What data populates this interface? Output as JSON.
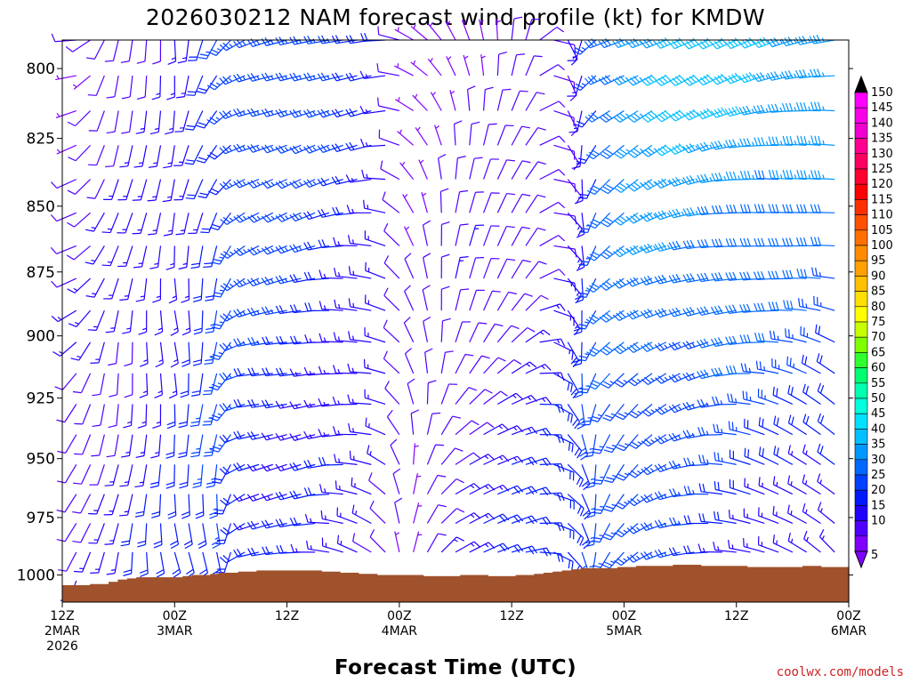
{
  "chart_data": {
    "type": "wind-barb time-height profile",
    "title": "2026030212 NAM forecast wind profile (kt) for KMDW",
    "xlabel": "Forecast Time (UTC)",
    "ylabel": "",
    "y_axis": {
      "scale": "log",
      "units": "hPa",
      "range": [
        790,
        1012
      ],
      "ticks": [
        800,
        825,
        850,
        875,
        900,
        925,
        950,
        975,
        1000
      ]
    },
    "x_axis": {
      "range_hours_from_start": [
        0,
        84
      ],
      "start": "2026-03-02 12Z",
      "ticks": [
        {
          "hour": 0,
          "lines": [
            "12Z",
            "2MAR",
            "2026"
          ]
        },
        {
          "hour": 12,
          "lines": [
            "00Z",
            "3MAR"
          ]
        },
        {
          "hour": 24,
          "lines": [
            "12Z",
            ""
          ]
        },
        {
          "hour": 36,
          "lines": [
            "00Z",
            "4MAR"
          ]
        },
        {
          "hour": 48,
          "lines": [
            "12Z",
            ""
          ]
        },
        {
          "hour": 60,
          "lines": [
            "00Z",
            "5MAR"
          ]
        },
        {
          "hour": 72,
          "lines": [
            "12Z",
            ""
          ]
        },
        {
          "hour": 84,
          "lines": [
            "00Z",
            "6MAR"
          ]
        }
      ]
    },
    "wind_keyframes": [
      {
        "hour": 0,
        "low_dir": 200,
        "low_spd": 12,
        "high_dir": 290,
        "high_spd": 8
      },
      {
        "hour": 5,
        "low_dir": 190,
        "low_spd": 15,
        "high_dir": 200,
        "high_spd": 10
      },
      {
        "hour": 12,
        "low_dir": 170,
        "low_spd": 20,
        "high_dir": 185,
        "high_spd": 12
      },
      {
        "hour": 17,
        "low_dir": 175,
        "low_spd": 25,
        "high_dir": 215,
        "high_spd": 22
      },
      {
        "hour": 20,
        "low_dir": 260,
        "low_spd": 18,
        "high_dir": 245,
        "high_spd": 28
      },
      {
        "hour": 27,
        "low_dir": 265,
        "low_spd": 15,
        "high_dir": 250,
        "high_spd": 25
      },
      {
        "hour": 34,
        "low_dir": 300,
        "low_spd": 12,
        "high_dir": 260,
        "high_spd": 18
      },
      {
        "hour": 37,
        "low_dir": 10,
        "low_spd": 8,
        "high_dir": 300,
        "high_spd": 6
      },
      {
        "hour": 42,
        "low_dir": 70,
        "low_spd": 15,
        "high_dir": 340,
        "high_spd": 8
      },
      {
        "hour": 50,
        "low_dir": 90,
        "low_spd": 20,
        "high_dir": 20,
        "high_spd": 8
      },
      {
        "hour": 55,
        "low_dir": 150,
        "low_spd": 25,
        "high_dir": 180,
        "high_spd": 12
      },
      {
        "hour": 58,
        "low_dir": 200,
        "low_spd": 25,
        "high_dir": 240,
        "high_spd": 30
      },
      {
        "hour": 64,
        "low_dir": 240,
        "low_spd": 22,
        "high_dir": 245,
        "high_spd": 38
      },
      {
        "hour": 74,
        "low_dir": 290,
        "low_spd": 15,
        "high_dir": 255,
        "high_spd": 40
      },
      {
        "hour": 84,
        "low_dir": 330,
        "low_spd": 12,
        "high_dir": 260,
        "high_spd": 35
      }
    ],
    "surface_pressure_hpa": [
      1004.5,
      1004.5,
      1004.5,
      1004,
      1004,
      1003,
      1002,
      1001.5,
      1001,
      1001,
      1001,
      1001,
      1001,
      1000.5,
      1000,
      1000,
      999.5,
      999,
      999,
      998.5,
      998.5,
      998,
      998,
      998,
      998,
      998,
      998,
      998,
      998.5,
      998.5,
      999,
      999,
      999.5,
      999.5,
      1000,
      1000,
      1000,
      1000,
      1000,
      1000.5,
      1000.5,
      1000.5,
      1000.5,
      1000,
      1000,
      1000,
      1000.5,
      1000.5,
      1000.5,
      1000,
      1000,
      999.5,
      999,
      998.5,
      998,
      997.5,
      997,
      997,
      997,
      997,
      996.5,
      996.5,
      996,
      996,
      996,
      996,
      995.5,
      995.5,
      995.5,
      996,
      996,
      996,
      996,
      996,
      996.5,
      996.5,
      996.5,
      996.5,
      996.5,
      996.5,
      996,
      996,
      996.5,
      996.5,
      996.5
    ],
    "colorbar": {
      "labels": [
        "150",
        "145",
        "140",
        "135",
        "130",
        "125",
        "120",
        "115",
        "110",
        "105",
        "100",
        "95",
        "90",
        "85",
        "80",
        "75",
        "70",
        "65",
        "60",
        "55",
        "50",
        "45",
        "40",
        "35",
        "30",
        "25",
        "20",
        "15",
        "10",
        "5"
      ],
      "colors": [
        "#ff00ff",
        "#f800e8",
        "#f000d0",
        "#ff0090",
        "#ff0060",
        "#ff0030",
        "#ff0000",
        "#ff3000",
        "#ff5000",
        "#ff7000",
        "#ff8c00",
        "#ffa000",
        "#ffc000",
        "#ffe000",
        "#ffff00",
        "#c8ff00",
        "#80ff00",
        "#30ff30",
        "#00ff70",
        "#00ffb0",
        "#00ffdd",
        "#00e0ff",
        "#00c0ff",
        "#0098ff",
        "#0068ff",
        "#0040ff",
        "#0018ff",
        "#2000ff",
        "#5000ff",
        "#8000ff"
      ],
      "top_color": "#000000",
      "bottom_color": "#8000ff"
    },
    "ground_color": "#a0522d",
    "credit": "coolwx.com/models"
  }
}
